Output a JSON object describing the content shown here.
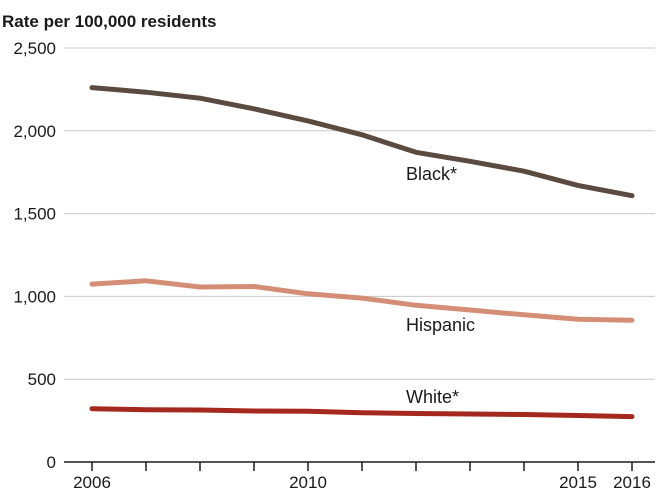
{
  "chart_data": {
    "type": "line",
    "ylabel": "Rate per 100,000 residents",
    "xlabel": "",
    "ylim": [
      0,
      2500
    ],
    "xlim": [
      2006,
      2016
    ],
    "y_ticks": [
      0,
      500,
      1000,
      1500,
      2000,
      2500
    ],
    "y_tick_labels": [
      "0",
      "500",
      "1,000",
      "1,500",
      "2,000",
      "2,500"
    ],
    "x_ticks": [
      2006,
      2007,
      2008,
      2009,
      2010,
      2011,
      2012,
      2013,
      2014,
      2015,
      2016
    ],
    "x_tick_labels": [
      {
        "x": 2006,
        "label": "2006"
      },
      {
        "x": 2010,
        "label": "2010"
      },
      {
        "x": 2015,
        "label": "2015"
      },
      {
        "x": 2016,
        "label": "2016"
      }
    ],
    "grid": true,
    "x": [
      2006,
      2007,
      2008,
      2009,
      2010,
      2011,
      2012,
      2013,
      2014,
      2015,
      2016
    ],
    "series": [
      {
        "name": "Black*",
        "color": "#5a4a3f",
        "values": [
          2261,
          2233,
          2197,
          2133,
          2060,
          1976,
          1870,
          1816,
          1756,
          1670,
          1608
        ]
      },
      {
        "name": "Hispanic",
        "color": "#d58e76",
        "values": [
          1074,
          1094,
          1057,
          1060,
          1016,
          990,
          946,
          918,
          889,
          862,
          856
        ]
      },
      {
        "name": "White*",
        "color": "#a5281e",
        "values": [
          322,
          316,
          314,
          308,
          307,
          298,
          293,
          290,
          287,
          281,
          274
        ]
      }
    ]
  }
}
